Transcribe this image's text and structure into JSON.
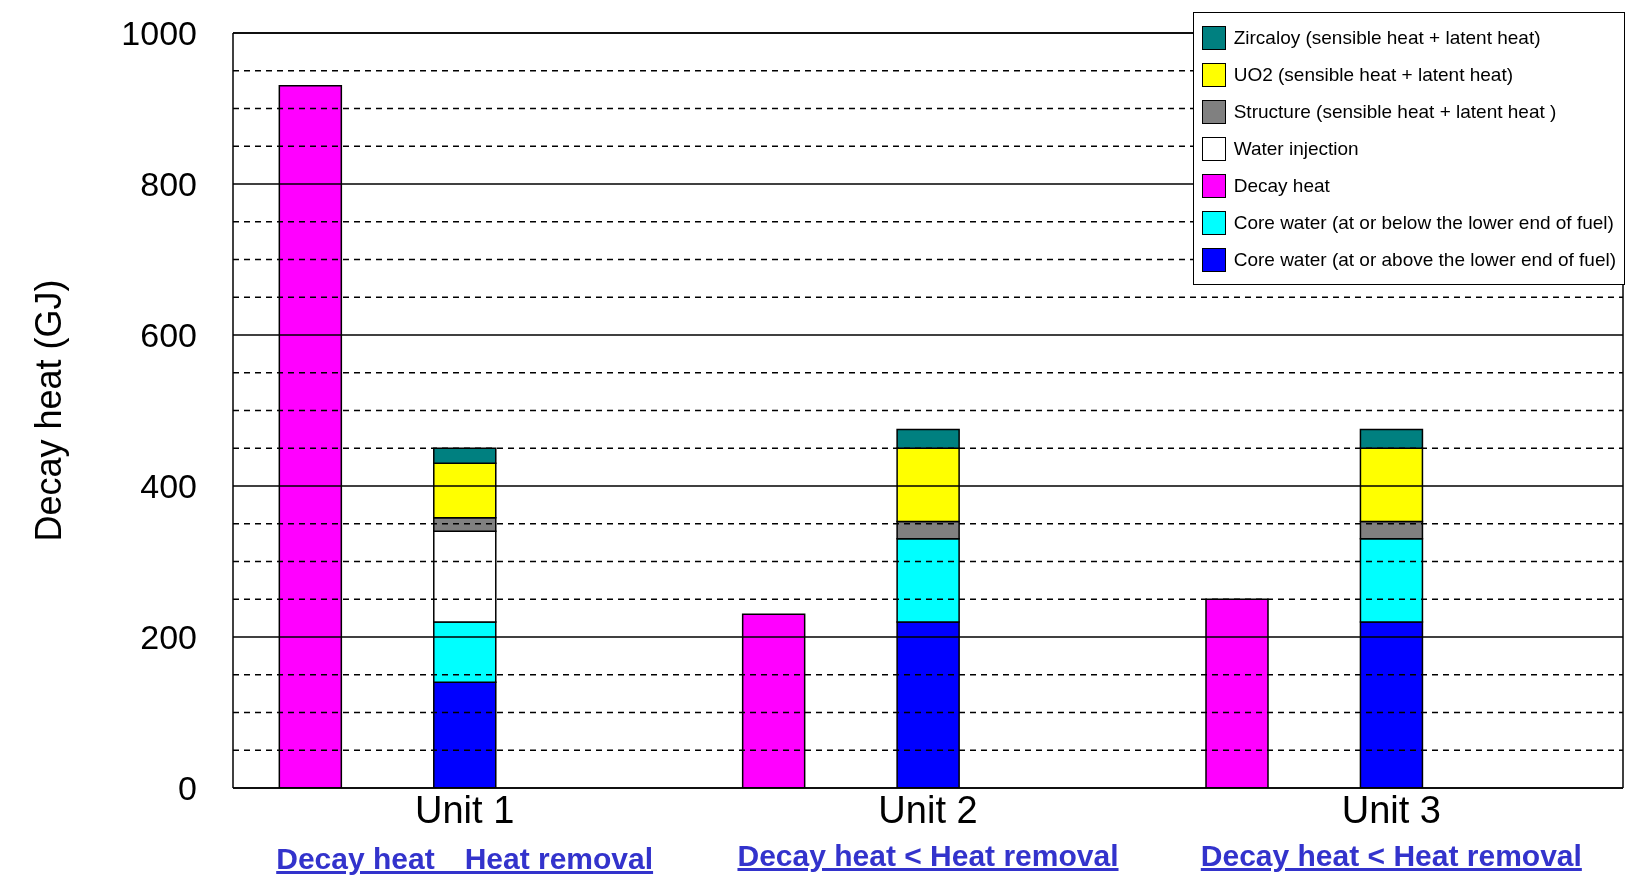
{
  "chart_data": {
    "type": "bar",
    "stacked": true,
    "ylabel": "Decay heat (GJ)",
    "categories": [
      null,
      "Unit 1",
      null,
      null,
      "Unit 2",
      null,
      null,
      "Unit 3",
      null
    ],
    "series": [
      {
        "name": "Core water (at or above the lower end of fuel)",
        "color": "#0000ff",
        "values": [
          null,
          140,
          null,
          null,
          220,
          null,
          null,
          220,
          null
        ]
      },
      {
        "name": "Core water (at or below the lower end of fuel)",
        "color": "#00ffff",
        "values": [
          null,
          80,
          null,
          null,
          110,
          null,
          null,
          110,
          null
        ]
      },
      {
        "name": "Decay heat",
        "color": "#ff00ff",
        "values": [
          930,
          null,
          null,
          230,
          null,
          null,
          250,
          null,
          null
        ]
      },
      {
        "name": "Water injection",
        "color": "#ffffff",
        "values": [
          null,
          120,
          null,
          null,
          null,
          null,
          null,
          null,
          null
        ]
      },
      {
        "name": "Structure (sensible heat + latent heat )",
        "color": "#808080",
        "values": [
          null,
          18,
          null,
          null,
          23,
          null,
          null,
          23,
          null
        ]
      },
      {
        "name": "UO2 (sensible heat + latent heat)",
        "color": "#ffff00",
        "values": [
          null,
          72,
          null,
          null,
          97,
          null,
          null,
          97,
          null
        ]
      },
      {
        "name": "Zircaloy (sensible heat + latent heat)",
        "color": "#008080",
        "values": [
          null,
          20,
          null,
          null,
          25,
          null,
          null,
          25,
          null
        ]
      }
    ],
    "ylim": [
      0,
      1000
    ],
    "yticks": [
      0,
      {
        "value": 50,
        "label": null
      },
      {
        "value": 100,
        "label": null
      },
      {
        "value": 150,
        "label": null
      },
      200,
      {
        "value": 250,
        "label": null
      },
      {
        "value": 300,
        "label": null
      },
      {
        "value": 350,
        "label": null
      },
      400,
      {
        "value": 450,
        "label": null
      },
      {
        "value": 500,
        "label": null
      },
      {
        "value": 550,
        "label": null
      },
      600,
      {
        "value": 650,
        "label": null
      },
      {
        "value": 700,
        "label": null
      },
      {
        "value": 750,
        "label": null
      },
      800,
      {
        "value": 850,
        "label": null
      },
      {
        "value": 900,
        "label": null
      },
      {
        "value": 950,
        "label": null
      },
      1000
    ],
    "grid": true,
    "legend": "top right",
    "annotations": [
      "Decay heat　Heat removal",
      "Decay heat < Heat removal",
      "Decay heat < Heat removal"
    ]
  }
}
